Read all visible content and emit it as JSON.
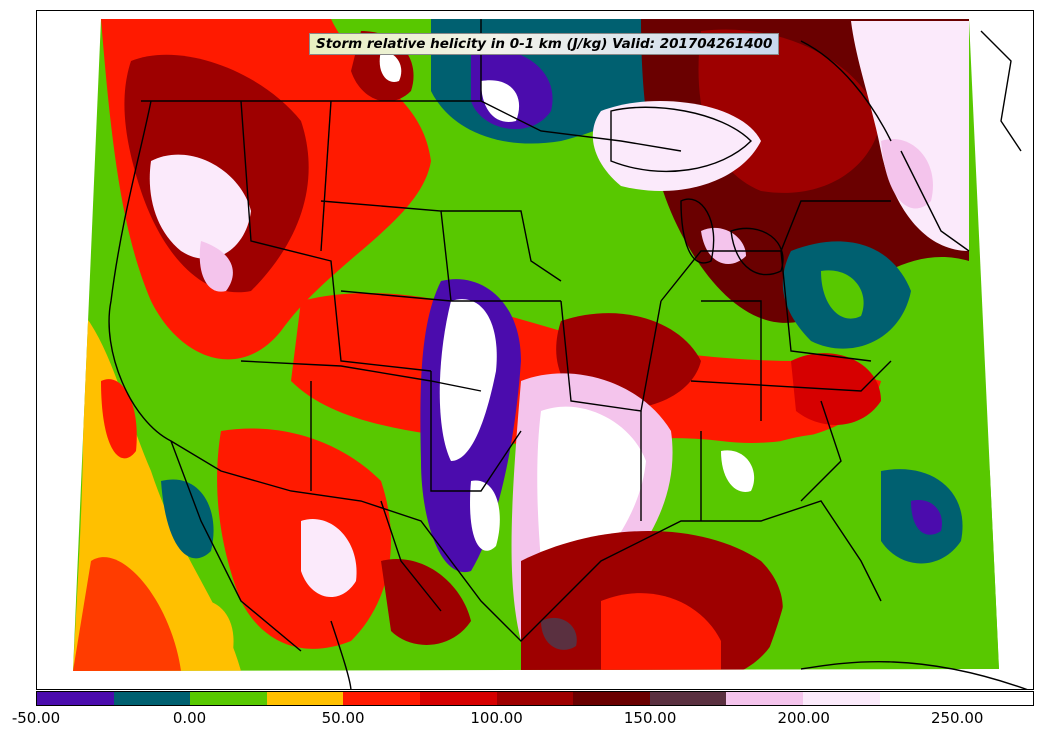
{
  "map": {
    "title": "Storm relative helicity in 0-1 km (J/kg) Valid: 201704261400"
  },
  "colorbar": {
    "colors": [
      "#4b0cad",
      "#006070",
      "#58c800",
      "#ffc000",
      "#ff1a00",
      "#d60000",
      "#9e0000",
      "#6a0000",
      "#5a3040",
      "#f4c4ec",
      "#fbeafb",
      "#ffffff"
    ],
    "bounds": [
      -50,
      -25,
      0,
      25,
      50,
      75,
      100,
      125,
      150,
      175,
      200,
      225,
      275
    ],
    "tick_labels": [
      "-50.00",
      "0.00",
      "50.00",
      "100.00",
      "150.00",
      "200.00",
      "250.00"
    ],
    "tick_values": [
      -50,
      0,
      50,
      100,
      150,
      200,
      250
    ]
  }
}
